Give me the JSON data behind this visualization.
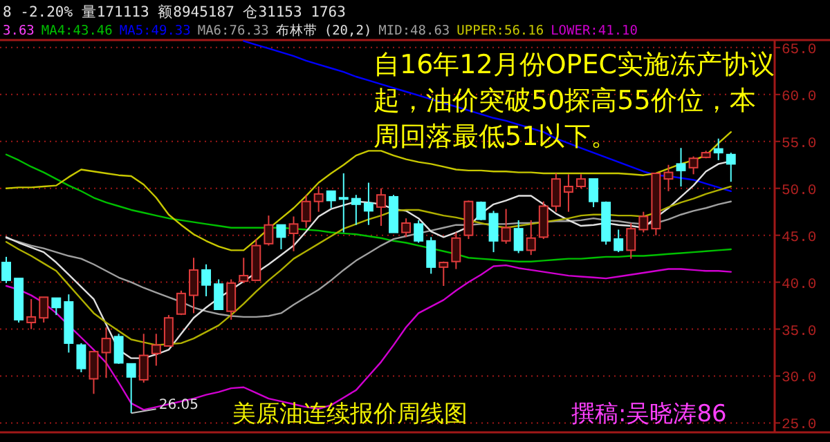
{
  "chart_data": {
    "type": "candlestick",
    "categories": [
      null,
      null,
      null,
      null,
      null,
      null,
      null,
      null,
      null,
      null,
      null,
      null,
      null,
      null,
      null,
      null,
      null,
      null,
      null,
      null,
      null,
      null,
      null,
      null,
      null,
      null,
      null,
      null,
      null,
      null,
      null,
      null,
      null,
      null,
      null,
      null,
      null,
      null,
      null,
      null,
      null,
      null,
      null,
      null,
      null,
      null,
      null,
      null,
      null,
      null,
      null,
      null,
      null,
      null,
      null,
      null,
      null,
      null,
      null
    ],
    "ohlc": [
      [
        42.1,
        42.7,
        39.9,
        40.2
      ],
      [
        40.4,
        40.4,
        35.7,
        36.0
      ],
      [
        35.7,
        38.2,
        35.0,
        36.3
      ],
      [
        36.2,
        38.4,
        35.7,
        38.4
      ],
      [
        38.3,
        38.3,
        36.5,
        37.3
      ],
      [
        37.9,
        38.7,
        32.5,
        33.5
      ],
      [
        33.3,
        33.5,
        30.4,
        30.8
      ],
      [
        29.7,
        32.6,
        28.1,
        32.6
      ],
      [
        32.5,
        35.2,
        29.8,
        34.0
      ],
      [
        34.2,
        34.5,
        31.3,
        31.4
      ],
      [
        31.3,
        31.3,
        26.05,
        29.9
      ],
      [
        29.6,
        34.5,
        29.3,
        32.2
      ],
      [
        32.4,
        34.5,
        31.1,
        33.3
      ],
      [
        33.2,
        36.5,
        33.2,
        36.2
      ],
      [
        36.6,
        39.1,
        36.5,
        38.8
      ],
      [
        38.6,
        42.6,
        36.7,
        41.3
      ],
      [
        41.3,
        41.9,
        38.5,
        39.7
      ],
      [
        39.8,
        40.3,
        37.1,
        37.1
      ],
      [
        36.9,
        40.3,
        36.0,
        39.9
      ],
      [
        40.1,
        42.6,
        39.9,
        40.7
      ],
      [
        40.2,
        44.6,
        40.2,
        43.9
      ],
      [
        44.1,
        47.1,
        43.9,
        46.1
      ],
      [
        46.1,
        46.1,
        43.5,
        44.8
      ],
      [
        45.2,
        47.0,
        43.3,
        46.2
      ],
      [
        46.5,
        49.3,
        45.8,
        48.6
      ],
      [
        48.6,
        50.2,
        47.5,
        49.4
      ],
      [
        49.7,
        49.7,
        47.9,
        48.7
      ],
      [
        49.0,
        51.6,
        45.3,
        48.9
      ],
      [
        48.9,
        49.3,
        46.1,
        48.3
      ],
      [
        48.4,
        50.6,
        46.1,
        47.6
      ],
      [
        48.0,
        50.0,
        46.0,
        49.3
      ],
      [
        49.1,
        49.3,
        45.3,
        45.3
      ],
      [
        45.3,
        46.8,
        44.8,
        46.3
      ],
      [
        46.2,
        46.6,
        44.2,
        44.4
      ],
      [
        44.4,
        44.8,
        40.9,
        41.6
      ],
      [
        41.6,
        42.2,
        39.6,
        42.1
      ],
      [
        42.2,
        45.3,
        41.4,
        44.7
      ],
      [
        45.0,
        48.7,
        44.6,
        48.6
      ],
      [
        48.5,
        48.6,
        46.6,
        46.7
      ],
      [
        47.3,
        47.6,
        43.2,
        44.4
      ],
      [
        44.4,
        47.8,
        44.1,
        45.8
      ],
      [
        45.7,
        46.6,
        43.1,
        43.4
      ],
      [
        43.4,
        46.6,
        42.9,
        44.7
      ],
      [
        44.8,
        48.6,
        44.6,
        48.1
      ],
      [
        48.1,
        51.6,
        47.5,
        51.0
      ],
      [
        49.6,
        51.5,
        47.5,
        50.2
      ],
      [
        50.2,
        51.5,
        50.0,
        51.0
      ],
      [
        51.0,
        51.0,
        48.0,
        48.6
      ],
      [
        48.5,
        48.6,
        44.0,
        44.4
      ],
      [
        44.6,
        45.6,
        43.2,
        43.4
      ],
      [
        43.4,
        46.3,
        42.5,
        45.7
      ],
      [
        45.6,
        47.5,
        45.3,
        47.0
      ],
      [
        45.7,
        51.6,
        45.0,
        51.6
      ],
      [
        51.0,
        52.5,
        49.7,
        51.7
      ],
      [
        52.6,
        54.3,
        50.2,
        51.9
      ],
      [
        52.2,
        53.4,
        51.5,
        53.2
      ],
      [
        53.3,
        54.0,
        53.2,
        53.8
      ],
      [
        54.2,
        55.3,
        53.0,
        53.8
      ],
      [
        53.6,
        53.8,
        50.7,
        52.6
      ]
    ],
    "series": [
      {
        "type": "line",
        "name": "MA4:43.46",
        "color": "#00c000",
        "values": [
          53.6,
          53.0,
          52.3,
          51.7,
          51.0,
          50.3,
          49.7,
          49.0,
          48.5,
          48.1,
          47.7,
          47.4,
          47.1,
          46.8,
          46.6,
          46.4,
          46.2,
          46.0,
          45.8,
          45.8,
          45.8,
          45.8,
          45.8,
          45.7,
          45.6,
          45.5,
          45.3,
          45.2,
          45.1,
          44.9,
          44.7,
          44.4,
          44.2,
          43.9,
          43.6,
          43.3,
          43.0,
          42.6,
          42.5,
          42.4,
          42.3,
          42.2,
          42.2,
          42.3,
          42.4,
          42.5,
          42.5,
          42.6,
          42.7,
          42.7,
          42.8,
          42.8,
          42.9,
          43.0,
          43.1,
          43.2,
          43.3,
          43.4,
          43.5
        ]
      },
      {
        "type": "line",
        "name": "MA5:49.33",
        "color": "#0000ff",
        "values": [
          null,
          null,
          null,
          null,
          null,
          null,
          null,
          null,
          null,
          null,
          null,
          null,
          null,
          null,
          null,
          null,
          null,
          null,
          null,
          65.7,
          65.3,
          64.9,
          64.5,
          64.1,
          63.6,
          63.2,
          62.8,
          62.4,
          61.9,
          61.5,
          61.1,
          60.7,
          60.3,
          59.9,
          59.5,
          59.1,
          58.7,
          58.3,
          57.9,
          57.5,
          57.2,
          56.8,
          56.4,
          56.0,
          55.3,
          54.8,
          54.3,
          53.8,
          53.3,
          52.8,
          52.3,
          51.8,
          51.4,
          51.3,
          51.1,
          50.9,
          50.5,
          50.1,
          49.7
        ]
      },
      {
        "type": "line",
        "name": "MID:48.63",
        "color": "#a0a0a0",
        "values": [
          44.7,
          44.3,
          43.9,
          43.6,
          43.2,
          42.8,
          42.5,
          41.9,
          41.2,
          40.5,
          40.0,
          39.4,
          38.9,
          38.4,
          37.9,
          37.3,
          36.9,
          36.6,
          36.4,
          36.3,
          36.3,
          36.4,
          36.7,
          37.6,
          38.4,
          39.2,
          40.2,
          41.3,
          42.3,
          43.1,
          43.9,
          44.6,
          44.9,
          45.2,
          45.5,
          45.8,
          46.1,
          46.1,
          46.2,
          46.2,
          46.2,
          46.3,
          46.3,
          46.4,
          46.5,
          46.5,
          46.6,
          46.8,
          46.6,
          46.5,
          46.3,
          46.2,
          46.3,
          46.7,
          47.2,
          47.6,
          47.9,
          48.3,
          48.6
        ]
      },
      {
        "type": "line",
        "name": "UPPER:56.16",
        "color": "#c8c800",
        "values": [
          50.0,
          50.1,
          50.1,
          50.2,
          50.3,
          51.2,
          52.0,
          51.8,
          51.6,
          51.4,
          51.3,
          50.4,
          49.0,
          47.2,
          46.1,
          45.1,
          44.4,
          43.8,
          43.4,
          43.4,
          44.5,
          45.7,
          46.8,
          47.9,
          49.2,
          50.6,
          51.6,
          52.5,
          53.5,
          54.0,
          54.0,
          53.5,
          53.1,
          52.8,
          52.6,
          52.3,
          52.0,
          51.9,
          51.9,
          51.8,
          51.8,
          51.7,
          51.7,
          51.6,
          51.6,
          51.6,
          51.6,
          51.6,
          51.6,
          51.6,
          51.5,
          51.4,
          51.6,
          52.1,
          52.6,
          53.0,
          53.5,
          54.8,
          56.0
        ]
      },
      {
        "type": "line",
        "name": "LOWER:41.10",
        "color": "#d000d0",
        "values": [
          39.6,
          39.2,
          38.6,
          37.8,
          36.7,
          35.4,
          34.1,
          32.8,
          31.4,
          29.3,
          27.1,
          26.4,
          26.7,
          27.0,
          27.3,
          27.6,
          28.0,
          28.3,
          28.7,
          28.8,
          28.2,
          27.6,
          27.3,
          27.0,
          26.7,
          26.5,
          26.9,
          27.7,
          28.5,
          30.0,
          31.5,
          33.3,
          35.2,
          36.7,
          37.4,
          38.1,
          39.1,
          40.0,
          40.8,
          41.7,
          41.8,
          41.5,
          41.3,
          41.1,
          40.9,
          40.7,
          40.6,
          40.5,
          40.4,
          40.6,
          40.8,
          41.0,
          41.2,
          41.4,
          41.4,
          41.3,
          41.2,
          41.2,
          41.1
        ]
      },
      {
        "type": "line",
        "color": "#e0e0e0",
        "values": [
          44.8,
          44.2,
          43.7,
          43.2,
          42.1,
          40.8,
          39.5,
          38.2,
          35.5,
          32.8,
          31.9,
          31.9,
          32.3,
          32.8,
          34.5,
          36.2,
          37.3,
          38.3,
          39.2,
          40.1,
          41.0,
          41.9,
          42.9,
          43.9,
          45.4,
          47.0,
          47.8,
          48.2,
          48.6,
          48.5,
          48.3,
          47.8,
          47.6,
          46.8,
          45.4,
          44.8,
          45.3,
          45.9,
          47.3,
          48.3,
          48.7,
          49.2,
          49.2,
          48.3,
          47.3,
          46.6,
          46.0,
          46.1,
          46.3,
          46.1,
          46.0,
          45.8,
          46.9,
          47.9,
          49.1,
          50.3,
          51.8,
          52.6,
          52.9
        ]
      },
      {
        "type": "line",
        "color": "#b0b000",
        "values": [
          44.3,
          43.5,
          42.8,
          42.0,
          41.2,
          39.7,
          38.2,
          36.7,
          35.7,
          34.8,
          33.9,
          33.6,
          33.3,
          33.4,
          33.5,
          34.0,
          34.7,
          35.4,
          36.5,
          37.7,
          39.0,
          40.2,
          41.3,
          42.5,
          43.3,
          44.1,
          44.9,
          45.7,
          46.2,
          46.7,
          47.1,
          47.6,
          47.7,
          47.7,
          47.4,
          47.1,
          46.9,
          46.6,
          46.3,
          46.0,
          45.8,
          46.0,
          46.2,
          46.4,
          46.6,
          46.8,
          47.1,
          47.2,
          47.2,
          47.1,
          47.1,
          47.0,
          47.4,
          48.0,
          48.5,
          48.9,
          49.4,
          49.8,
          50.2
        ]
      }
    ],
    "ylim": [
      24.0,
      65.8
    ],
    "yticks": [
      {
        "value": 25,
        "label": "25.0"
      },
      {
        "value": 30,
        "label": "30.0"
      },
      {
        "value": 35,
        "label": "35.0"
      },
      {
        "value": 40,
        "label": "40.0"
      },
      {
        "value": 45,
        "label": "45.0"
      },
      {
        "value": 50,
        "label": "50.0"
      },
      {
        "value": 55,
        "label": "55.0"
      },
      {
        "value": 60,
        "label": "60.0"
      },
      {
        "value": 65,
        "label": "65.0"
      }
    ],
    "grid": "y",
    "tick_labels": "y",
    "annotations": [
      "8 -2.20% 量171113 额8945187 仓31153 1763",
      "3.63",
      "MA6:76.33",
      "布林带",
      "(20,2)",
      "自16年12月份OPEC实施冻产协议起，油价突破50探高55价位，本周回落最低51以下。",
      "美原油连续报价周线图",
      "撰稿:吴晓涛86",
      "26.05"
    ]
  }
}
